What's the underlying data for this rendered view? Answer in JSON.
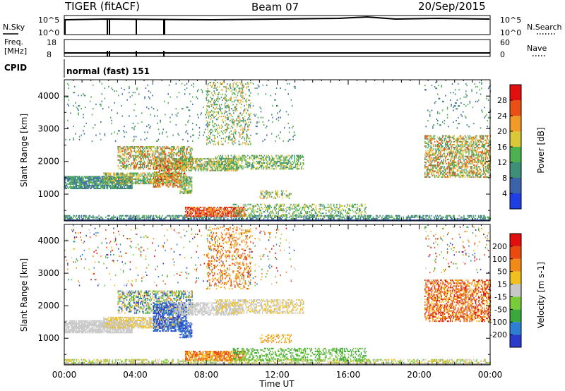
{
  "header": {
    "title": "TIGER (fitACF)",
    "beam": "Beam 07",
    "date": "20/Sep/2015"
  },
  "nsky_panel": {
    "left_label": "N.Sky",
    "right_label": "N.Search",
    "tick_top": "10^5",
    "tick_bottom": "10^0"
  },
  "freq_panel": {
    "left_label_1": "Freq.",
    "left_label_2": "[MHz]",
    "right_label": "Nave",
    "left_ticks": [
      "18",
      "8"
    ],
    "right_ticks": [
      "60",
      "0"
    ]
  },
  "cpid": {
    "label": "CPID",
    "value": "normal (fast) 151"
  },
  "x_axis": {
    "label": "Time UT",
    "ticks": [
      "00:00",
      "04:00",
      "08:00",
      "12:00",
      "16:00",
      "20:00",
      "00:00"
    ]
  },
  "colors": {
    "white": "#ffffff",
    "black": "#000000"
  },
  "chart_data": [
    {
      "type": "heatmap",
      "xlabel": "Time UT",
      "ylabel": "Slant Range [km]",
      "xlim": [
        0,
        24
      ],
      "ylim": [
        180,
        4500
      ],
      "y_ticks": [
        "1000",
        "2000",
        "3000",
        "4000"
      ],
      "colorbar": {
        "label": "Power [dB]",
        "ticks": [
          "4",
          "8",
          "12",
          "16",
          "20",
          "24",
          "28"
        ],
        "colors": [
          "#1f3fe0",
          "#3b64a8",
          "#3f8f78",
          "#4fb04f",
          "#d8c83a",
          "#f09a2a",
          "#e85018",
          "#e01010"
        ]
      }
    },
    {
      "type": "heatmap",
      "xlabel": "Time UT",
      "ylabel": "Slant Range [km]",
      "xlim": [
        0,
        24
      ],
      "ylim": [
        180,
        4500
      ],
      "y_ticks": [
        "1000",
        "2000",
        "3000",
        "4000"
      ],
      "colorbar": {
        "label": "Velocity [m s-1]",
        "ticks": [
          "200",
          "100",
          "50",
          "15",
          "-15",
          "-50",
          "-100",
          "-200"
        ],
        "colors": [
          "#2a3cc8",
          "#2f7fd0",
          "#3aa83a",
          "#7acb3a",
          "#c8c8c8",
          "#f0c020",
          "#f08a1a",
          "#e84a10",
          "#e01010"
        ]
      }
    }
  ]
}
